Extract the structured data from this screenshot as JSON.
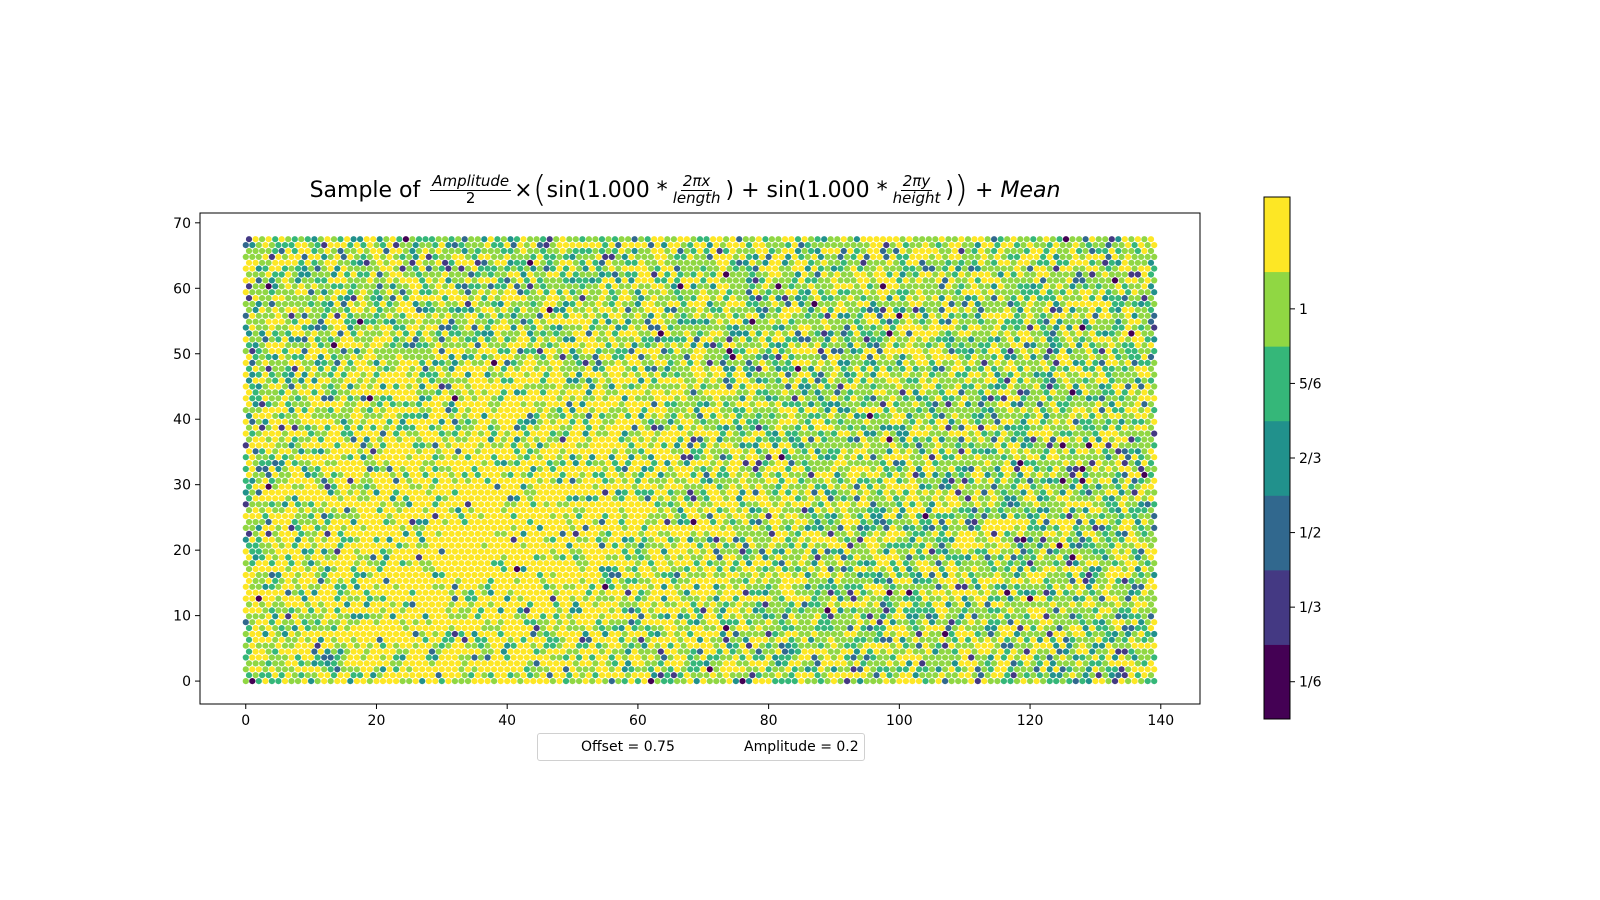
{
  "chart_data": {
    "type": "scatter",
    "title": {
      "prefix": "Sample of",
      "amp_num": "Amplitude",
      "amp_den": "2",
      "times": "×",
      "sin1_pre": "sin(1.000 * ",
      "fx_num": "2πx",
      "fx_den": "length",
      "sin_close1": ") + sin(1.000 * ",
      "fy_num": "2πy",
      "fy_den": "height",
      "sin_close2": ")",
      "plus_mean": "+",
      "mean": "Mean"
    },
    "xlim": [
      -7,
      146
    ],
    "ylim": [
      -3.5,
      71.5
    ],
    "xticks": [
      0,
      20,
      40,
      60,
      80,
      100,
      120,
      140
    ],
    "yticks": [
      0,
      10,
      20,
      30,
      40,
      50,
      60,
      70
    ],
    "grid": false,
    "marker": "hexagonal-grid points",
    "grid_x_range": [
      0,
      139
    ],
    "grid_y_range": [
      0,
      68
    ],
    "legend": {
      "placement": "below-center",
      "entries": [
        "Offset = 0.75",
        "Amplitude = 0.2"
      ]
    },
    "colorbar": {
      "colors": [
        "#440154",
        "#443983",
        "#31688e",
        "#21918c",
        "#35b779",
        "#90d743",
        "#fde725"
      ],
      "tick_labels": [
        "1/6",
        "1/3",
        "1/2",
        "2/3",
        "5/6",
        "1"
      ],
      "range": [
        0,
        7
      ]
    }
  }
}
